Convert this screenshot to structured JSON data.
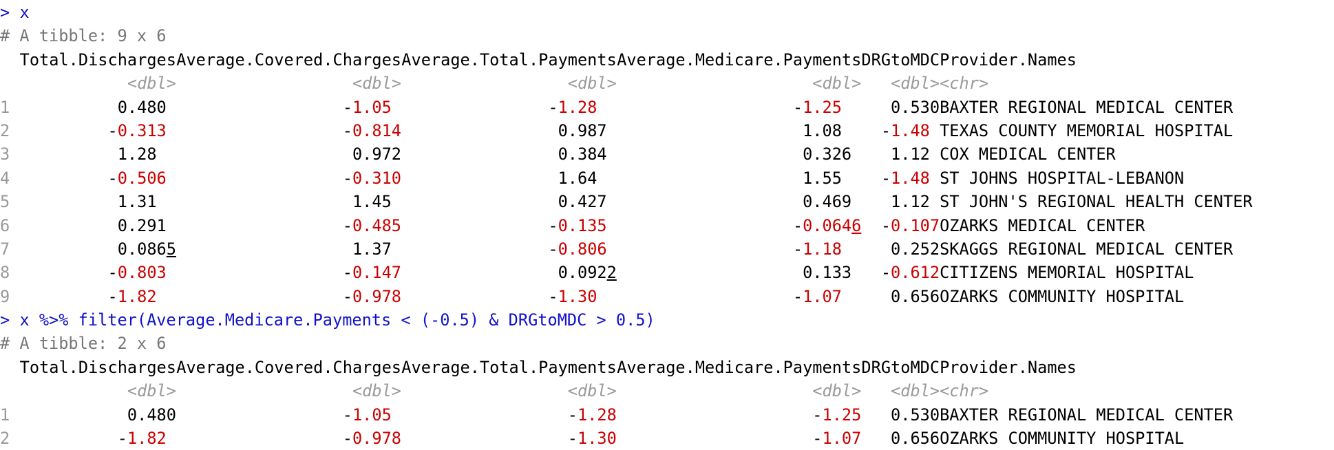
{
  "console": {
    "prompt": ">",
    "columns": [
      "Total.Discharges",
      "Average.Covered.Charges",
      "Average.Total.Payments",
      "Average.Medicare.Payments",
      "DRGtoMDC",
      "Provider.Names"
    ],
    "types": [
      "<dbl>",
      "<dbl>",
      "<dbl>",
      "<dbl>",
      "<dbl>",
      "<chr>"
    ],
    "blocks": [
      {
        "command": "x",
        "header": "# A tibble: 9 x 6",
        "rows": [
          {
            "i": "1",
            "v": [
              "0.480",
              "-1.05",
              "-1.28",
              "-1.25",
              "0.530"
            ],
            "name": "BAXTER REGIONAL MEDICAL CENTER"
          },
          {
            "i": "2",
            "v": [
              "-0.313",
              "-0.814",
              "0.987",
              "1.08",
              "-1.48"
            ],
            "name": "TEXAS COUNTY MEMORIAL HOSPITAL"
          },
          {
            "i": "3",
            "v": [
              "1.28",
              "0.972",
              "0.384",
              "0.326",
              "1.12"
            ],
            "name": "COX MEDICAL CENTER"
          },
          {
            "i": "4",
            "v": [
              "-0.506",
              "-0.310",
              "1.64",
              "1.55",
              "-1.48"
            ],
            "name": "ST JOHNS HOSPITAL-LEBANON"
          },
          {
            "i": "5",
            "v": [
              "1.31",
              "1.45",
              "0.427",
              "0.469",
              "1.12"
            ],
            "name": "ST JOHN'S REGIONAL HEALTH CENTER"
          },
          {
            "i": "6",
            "v": [
              "0.291",
              "-0.485",
              "-0.135",
              "-0.0646",
              "-0.107"
            ],
            "name": "OZARKS MEDICAL CENTER"
          },
          {
            "i": "7",
            "v": [
              "0.0865",
              "1.37",
              "-0.806",
              "-1.18",
              "0.252"
            ],
            "name": "SKAGGS REGIONAL MEDICAL CENTER"
          },
          {
            "i": "8",
            "v": [
              "-0.803",
              "-0.147",
              "0.0922",
              "0.133",
              "-0.612"
            ],
            "name": "CITIZENS MEMORIAL HOSPITAL"
          },
          {
            "i": "9",
            "v": [
              "-1.82",
              "-0.978",
              "-1.30",
              "-1.07",
              "0.656"
            ],
            "name": "OZARKS COMMUNITY HOSPITAL"
          }
        ]
      },
      {
        "command": "x %>% filter(Average.Medicare.Payments < (-0.5) & DRGtoMDC > 0.5)",
        "header": "# A tibble: 2 x 6",
        "rows": [
          {
            "i": "1",
            "v": [
              "0.480",
              "-1.05",
              "-1.28",
              "-1.25",
              "0.530"
            ],
            "name": "BAXTER REGIONAL MEDICAL CENTER"
          },
          {
            "i": "2",
            "v": [
              "-1.82",
              "-0.978",
              "-1.30",
              "-1.07",
              "0.656"
            ],
            "name": "OZARKS COMMUNITY HOSPITAL"
          }
        ]
      }
    ],
    "colors": {
      "command": "#1111cc",
      "negative": "#cc0000",
      "muted": "#999999"
    }
  }
}
